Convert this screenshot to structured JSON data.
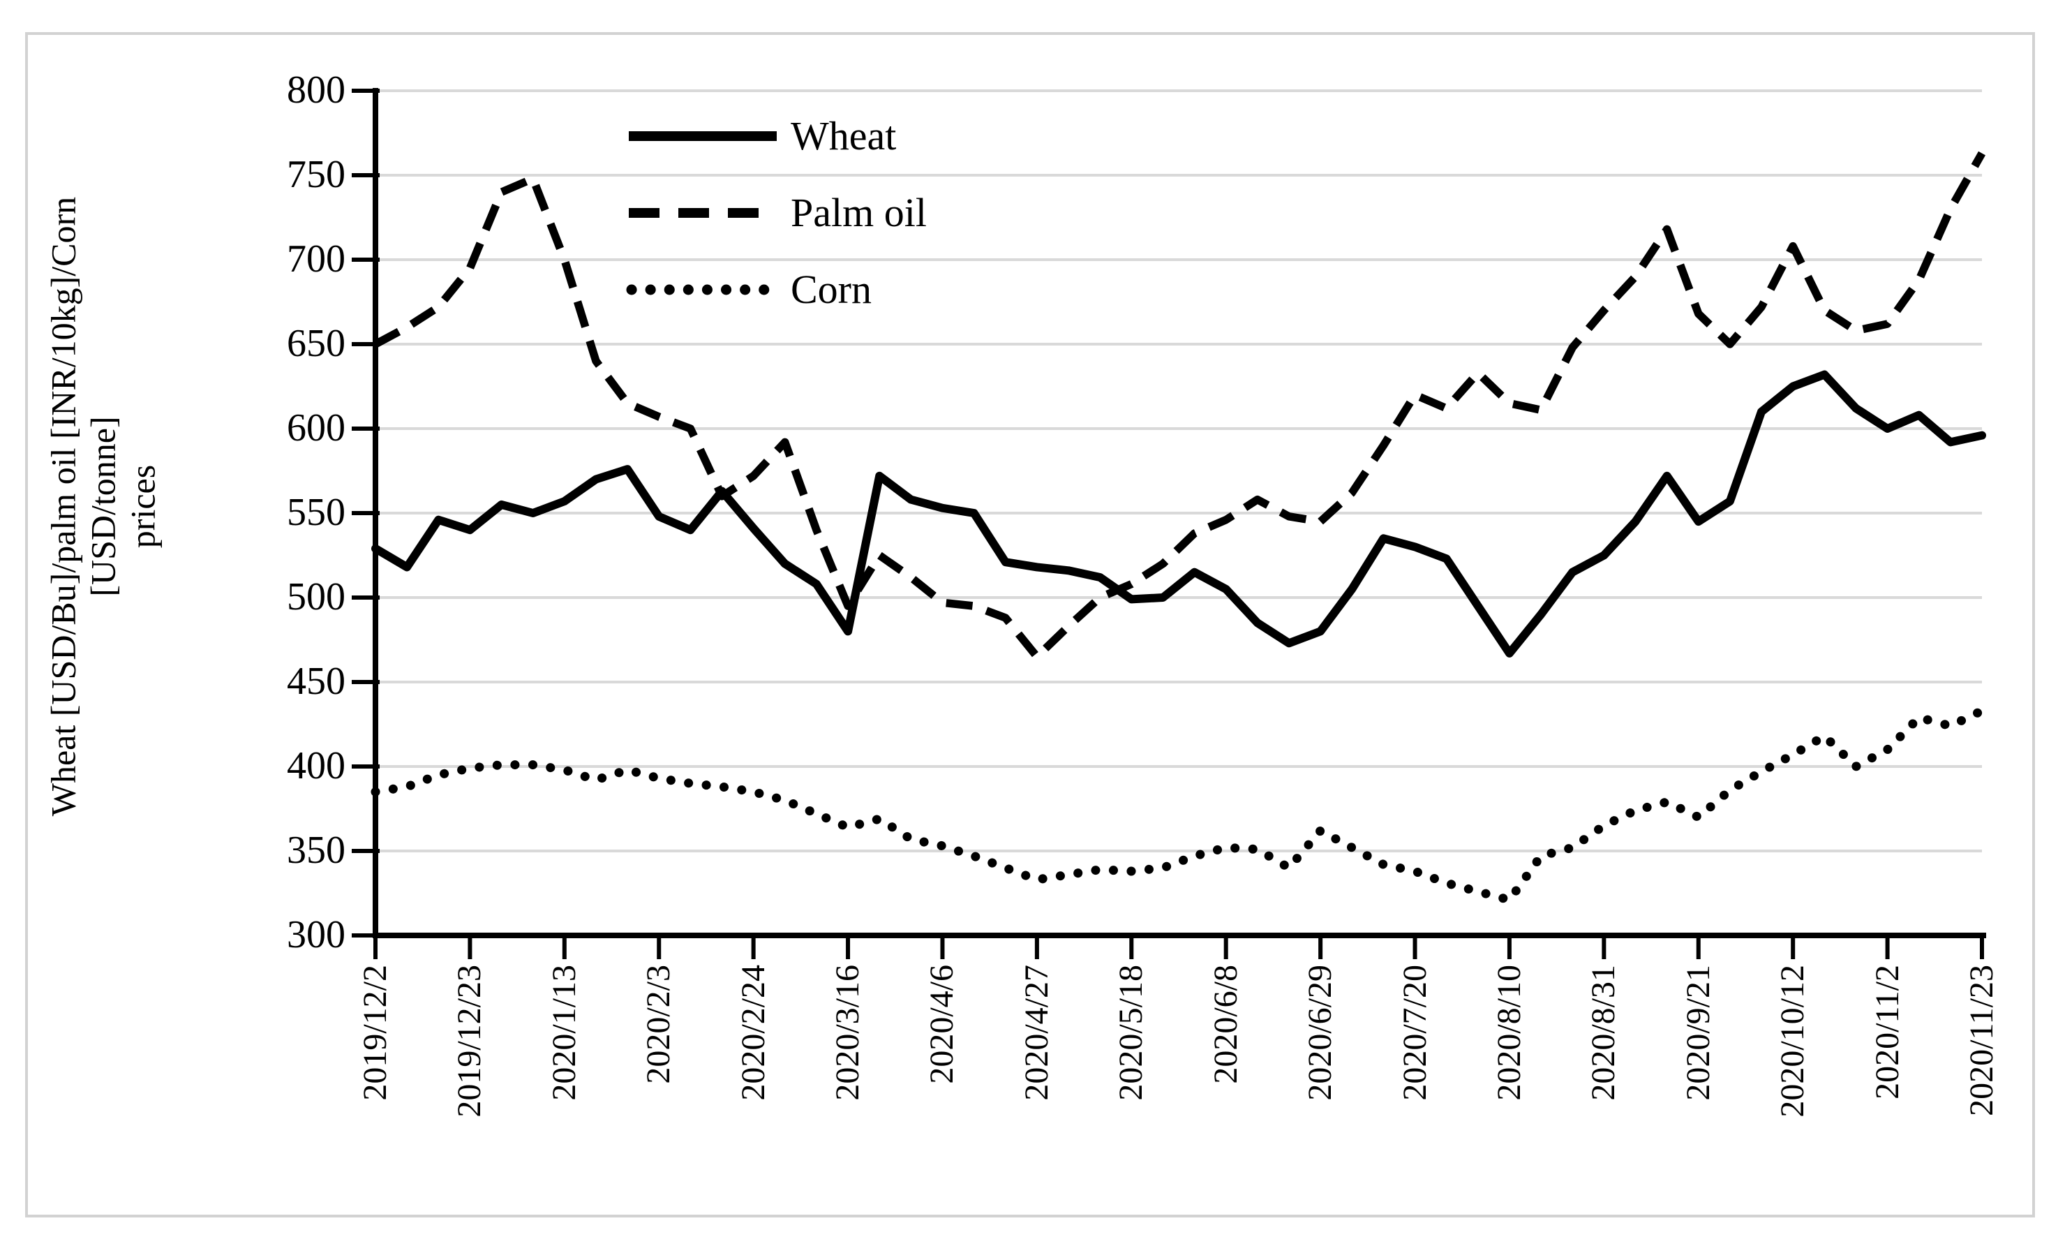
{
  "figure": {
    "background_color": "#ffffff",
    "border_color": "#d2d2d2",
    "ink_color": "#000000",
    "gridline_color": "#d9d9d9"
  },
  "y_axis": {
    "title_lines": [
      "Wheat [USD/Bu]/palm oil [INR/10kg]/Corn",
      "[USD/tonne]",
      "prices"
    ],
    "tick_labels": [
      "300",
      "350",
      "400",
      "450",
      "500",
      "550",
      "600",
      "650",
      "700",
      "750",
      "800"
    ],
    "min": 300,
    "max": 800,
    "step": 50
  },
  "x_axis": {
    "tick_labels": [
      "2019/12/2",
      "2019/12/23",
      "2020/1/13",
      "2020/2/3",
      "2020/2/24",
      "2020/3/16",
      "2020/4/6",
      "2020/4/27",
      "2020/5/18",
      "2020/6/8",
      "2020/6/29",
      "2020/7/20",
      "2020/8/10",
      "2020/8/31",
      "2020/9/21",
      "2020/10/12",
      "2020/11/2",
      "2020/11/23"
    ],
    "points_per_label_interval": 3,
    "sampling": "weekly"
  },
  "chart_data": {
    "type": "line",
    "title": "",
    "xlabel": "",
    "ylabel": "Wheat [USD/Bu]/palm oil [INR/10kg]/Corn [USD/tonne] prices",
    "ylim": [
      300,
      800
    ],
    "grid": "horizontal",
    "legend_position": "top-left-inside",
    "color": "#000000",
    "x_tick_labels": [
      "2019/12/2",
      "2019/12/23",
      "2020/1/13",
      "2020/2/3",
      "2020/2/24",
      "2020/3/16",
      "2020/4/6",
      "2020/4/27",
      "2020/5/18",
      "2020/6/8",
      "2020/6/29",
      "2020/7/20",
      "2020/8/10",
      "2020/8/31",
      "2020/9/21",
      "2020/10/12",
      "2020/11/2",
      "2020/11/23"
    ],
    "series": [
      {
        "name": "Wheat",
        "unit": "USD/Bu",
        "line_style": "solid",
        "values": [
          529,
          518,
          546,
          540,
          555,
          550,
          557,
          570,
          576,
          548,
          540,
          563,
          541,
          520,
          508,
          480,
          572,
          558,
          553,
          550,
          521,
          518,
          516,
          512,
          499,
          500,
          515,
          505,
          485,
          473,
          480,
          505,
          535,
          530,
          523,
          495,
          467,
          490,
          515,
          525,
          545,
          572,
          545,
          557,
          610,
          625,
          632,
          612,
          600,
          608,
          592,
          596
        ]
      },
      {
        "name": "Palm oil",
        "unit": "INR/10kg",
        "line_style": "dashed",
        "values": [
          650,
          660,
          672,
          695,
          740,
          748,
          700,
          640,
          615,
          607,
          600,
          560,
          572,
          592,
          540,
          495,
          525,
          512,
          497,
          495,
          488,
          465,
          483,
          500,
          508,
          520,
          538,
          546,
          558,
          548,
          545,
          562,
          590,
          620,
          612,
          633,
          615,
          611,
          648,
          670,
          690,
          718,
          668,
          650,
          672,
          708,
          670,
          658,
          662,
          688,
          730,
          763
        ]
      },
      {
        "name": "Corn",
        "unit": "USD/tonne",
        "line_style": "dotted",
        "values": [
          385,
          388,
          395,
          399,
          401,
          401,
          398,
          392,
          398,
          393,
          390,
          388,
          385,
          380,
          372,
          364,
          369,
          357,
          353,
          347,
          340,
          333,
          336,
          339,
          338,
          340,
          347,
          352,
          351,
          340,
          362,
          352,
          342,
          338,
          331,
          326,
          321,
          347,
          352,
          365,
          374,
          379,
          370,
          386,
          397,
          407,
          418,
          400,
          410,
          429,
          424,
          433
        ]
      }
    ]
  }
}
